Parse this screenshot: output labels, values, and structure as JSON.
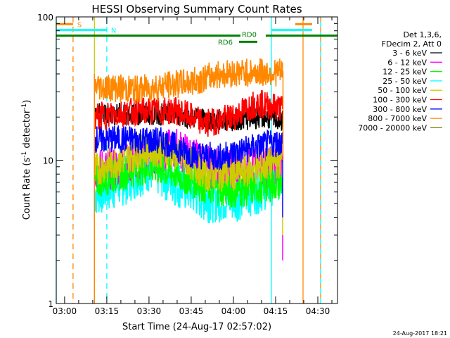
{
  "chart_data": {
    "type": "line",
    "title": "HESSI Observing Summary Count Rates",
    "xlabel": "Start Time (24-Aug-17 02:57:02)",
    "ylabel": "Count Rate (s⁻¹ detector⁻¹)",
    "ylabel_parts": [
      "Count Rate (s",
      "-1",
      " detector",
      "-1",
      ")"
    ],
    "yscale": "log",
    "ylim": [
      1,
      100
    ],
    "y_tick_labels": [
      "1",
      "10",
      "100"
    ],
    "x_start_min": -2.97,
    "x_end_min": 97,
    "x_tick_labels": [
      "03:00",
      "03:15",
      "03:30",
      "03:45",
      "04:00",
      "04:15",
      "04:30"
    ],
    "x_tick_minutes": [
      0,
      15,
      30,
      45,
      60,
      75,
      90
    ],
    "legend_header": [
      "Det 1,3,6,",
      "FDecim 2, Att 0"
    ],
    "legend_position": "right",
    "data_start_min": 10.6,
    "data_end_min": 77.5,
    "series": [
      {
        "name": "3 - 6 keV",
        "color": "#000000",
        "profile": [
          [
            10.6,
            21
          ],
          [
            25,
            21
          ],
          [
            40,
            21
          ],
          [
            50,
            19
          ],
          [
            60,
            19
          ],
          [
            70,
            20
          ],
          [
            77.5,
            19
          ]
        ],
        "noise": 0.08
      },
      {
        "name": "6 - 12 keV",
        "color": "#ff00ff",
        "profile": [
          [
            10.6,
            8.5
          ],
          [
            20,
            9
          ],
          [
            30,
            11
          ],
          [
            40,
            12
          ],
          [
            50,
            9
          ],
          [
            60,
            8.5
          ],
          [
            70,
            9
          ],
          [
            77.5,
            9
          ]
        ],
        "noise": 0.15,
        "sparse": true
      },
      {
        "name": "12 - 25 keV",
        "color": "#00ff00",
        "profile": [
          [
            10.6,
            7
          ],
          [
            20,
            8
          ],
          [
            30,
            9
          ],
          [
            40,
            8
          ],
          [
            50,
            6.5
          ],
          [
            60,
            6
          ],
          [
            70,
            6.5
          ],
          [
            77.5,
            7
          ]
        ],
        "noise": 0.12,
        "sparse": true
      },
      {
        "name": "25 - 50 keV",
        "color": "#00ffff",
        "profile": [
          [
            10.6,
            6
          ],
          [
            20,
            7
          ],
          [
            30,
            9
          ],
          [
            40,
            7
          ],
          [
            50,
            5.5
          ],
          [
            60,
            5.5
          ],
          [
            70,
            6.5
          ],
          [
            77.5,
            8
          ]
        ],
        "noise": 0.18
      },
      {
        "name": "50 - 100 keV",
        "color": "#cccc00",
        "profile": [
          [
            10.6,
            8.5
          ],
          [
            20,
            10
          ],
          [
            30,
            12
          ],
          [
            40,
            11
          ],
          [
            50,
            8
          ],
          [
            60,
            8
          ],
          [
            70,
            9
          ],
          [
            77.5,
            10
          ]
        ],
        "noise": 0.12
      },
      {
        "name": "100 - 300 keV",
        "color": "#ff0000",
        "profile": [
          [
            10.6,
            20
          ],
          [
            25,
            22
          ],
          [
            40,
            22
          ],
          [
            50,
            18
          ],
          [
            60,
            20
          ],
          [
            68,
            25
          ],
          [
            77.5,
            23
          ]
        ],
        "noise": 0.1
      },
      {
        "name": "300 - 800 keV",
        "color": "#0000ff",
        "profile": [
          [
            10.6,
            14
          ],
          [
            25,
            14
          ],
          [
            35,
            13.5
          ],
          [
            45,
            11
          ],
          [
            55,
            10.5
          ],
          [
            65,
            12
          ],
          [
            77.5,
            13.5
          ]
        ],
        "noise": 0.1
      },
      {
        "name": "800 - 7000 keV",
        "color": "#ff8800",
        "profile": [
          [
            10.6,
            33
          ],
          [
            25,
            31
          ],
          [
            35,
            33
          ],
          [
            45,
            35
          ],
          [
            55,
            40
          ],
          [
            65,
            41
          ],
          [
            77.5,
            41
          ]
        ],
        "noise": 0.1
      },
      {
        "name": "7000 - 20000 keV",
        "color": "#808000",
        "profile": [],
        "noise": 0
      }
    ],
    "mode_bars": [
      {
        "label": "S",
        "color": "#ff8800",
        "segments": [
          [
            -2.97,
            3
          ]
        ],
        "second_segments": [
          [
            82,
            88
          ]
        ],
        "level": 89
      },
      {
        "label": "N",
        "color": "#00ffff",
        "segments": [
          [
            -2.97,
            15
          ]
        ],
        "second_segments": [
          [
            73.5,
            88
          ]
        ],
        "level": 81
      },
      {
        "label": "RD0",
        "color": "#008000",
        "segments": [
          [
            -2.97,
            62.5
          ],
          [
            71.5,
            97
          ]
        ],
        "level": 74
      },
      {
        "label": "RD6",
        "color": "#008000",
        "segments": [
          [
            62,
            68.5
          ]
        ],
        "level": 67
      }
    ],
    "vertical_markers": [
      {
        "minute": -2.97,
        "color": "#00ffff",
        "style": "solid"
      },
      {
        "minute": 3,
        "color": "#ff8800",
        "style": "dashed"
      },
      {
        "minute": 10.6,
        "color": "#cccc00",
        "style": "solid"
      },
      {
        "minute": 15,
        "color": "#00ffff",
        "style": "dashed"
      },
      {
        "minute": 73.5,
        "color": "#00ffff",
        "style": "solid"
      },
      {
        "minute": 84.75,
        "color": "#ff8800",
        "style": "solid"
      },
      {
        "minute": 91,
        "color": "#ff8800",
        "style": "dashed"
      },
      {
        "minute": 91,
        "color": "#00ffff",
        "style": "dashed2"
      }
    ]
  },
  "footer_timestamp": "24-Aug-2017 18:21"
}
